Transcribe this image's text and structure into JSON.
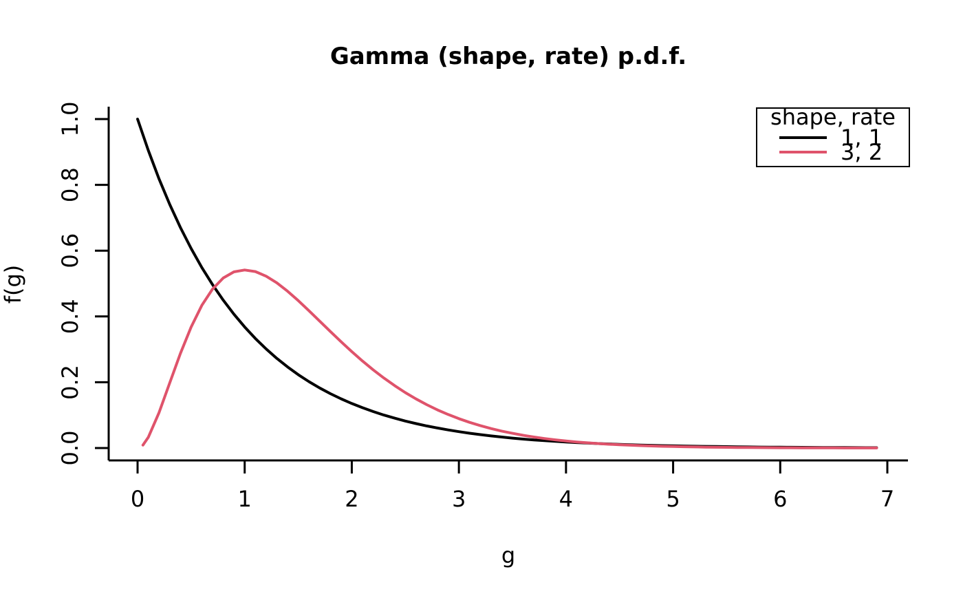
{
  "chart_data": {
    "type": "line",
    "title": "Gamma (shape, rate) p.d.f.",
    "xlabel": "g",
    "ylabel": "f(g)",
    "x_ticks": [
      0,
      1,
      2,
      3,
      4,
      5,
      6,
      7
    ],
    "x_tick_labels": [
      "0",
      "1",
      "2",
      "3",
      "4",
      "5",
      "6",
      "7"
    ],
    "y_ticks": [
      0.0,
      0.2,
      0.4,
      0.6,
      0.8,
      1.0
    ],
    "y_tick_labels": [
      "0.0",
      "0.2",
      "0.4",
      "0.6",
      "0.8",
      "1.0"
    ],
    "xlim": [
      -0.27,
      7.19
    ],
    "ylim": [
      -0.04,
      1.04
    ],
    "grid": false,
    "background": "#ffffff",
    "axis_color": "#000000",
    "legend": {
      "position": "topright",
      "title": "shape, rate",
      "entries": [
        {
          "label": "1, 1",
          "color": "#000000"
        },
        {
          "label": "3, 2",
          "color": "#DF536B"
        }
      ]
    },
    "series": [
      {
        "name": "shape=1, rate=1",
        "color": "#000000",
        "x": [
          0,
          0.1,
          0.2,
          0.3,
          0.4,
          0.5,
          0.6,
          0.7,
          0.8,
          0.9,
          1,
          1.1,
          1.2,
          1.3,
          1.4,
          1.5,
          1.6,
          1.7,
          1.8,
          1.9,
          2,
          2.1,
          2.2,
          2.3,
          2.4,
          2.5,
          2.6,
          2.7,
          2.8,
          2.9,
          3,
          3.1,
          3.2,
          3.3,
          3.4,
          3.5,
          3.6,
          3.7,
          3.8,
          3.9,
          4,
          4.1,
          4.2,
          4.3,
          4.4,
          4.5,
          4.6,
          4.7,
          4.8,
          4.9,
          5,
          5.1,
          5.2,
          5.3,
          5.4,
          5.5,
          5.6,
          5.7,
          5.8,
          5.9,
          6,
          6.1,
          6.2,
          6.3,
          6.4,
          6.5,
          6.6,
          6.7,
          6.8,
          6.9
        ],
        "y": [
          1.0,
          0.9048,
          0.8187,
          0.7408,
          0.6703,
          0.6065,
          0.5488,
          0.4966,
          0.4493,
          0.4066,
          0.3679,
          0.3329,
          0.3012,
          0.2725,
          0.2466,
          0.2231,
          0.2019,
          0.1827,
          0.1653,
          0.1496,
          0.1353,
          0.1225,
          0.1108,
          0.1003,
          0.0907,
          0.0821,
          0.0743,
          0.0672,
          0.0608,
          0.055,
          0.0498,
          0.045,
          0.0408,
          0.0369,
          0.0334,
          0.0302,
          0.0273,
          0.0247,
          0.0224,
          0.0202,
          0.0183,
          0.0166,
          0.015,
          0.0136,
          0.0123,
          0.0111,
          0.0101,
          0.0091,
          0.0082,
          0.0074,
          0.0067,
          0.0061,
          0.0055,
          0.005,
          0.0045,
          0.0041,
          0.0037,
          0.0033,
          0.003,
          0.0027,
          0.0025,
          0.0022,
          0.002,
          0.0018,
          0.0017,
          0.0015,
          0.0014,
          0.0012,
          0.0011,
          0.001
        ]
      },
      {
        "name": "shape=3, rate=2",
        "color": "#DF536B",
        "x": [
          0.05,
          0.1,
          0.2,
          0.3,
          0.4,
          0.5,
          0.6,
          0.7,
          0.8,
          0.9,
          1,
          1.1,
          1.2,
          1.3,
          1.4,
          1.5,
          1.6,
          1.7,
          1.8,
          1.9,
          2,
          2.1,
          2.2,
          2.3,
          2.4,
          2.5,
          2.6,
          2.7,
          2.8,
          2.9,
          3,
          3.1,
          3.2,
          3.3,
          3.4,
          3.5,
          3.6,
          3.7,
          3.8,
          3.9,
          4,
          4.1,
          4.2,
          4.3,
          4.4,
          4.5,
          4.6,
          4.7,
          4.8,
          4.9,
          5,
          5.1,
          5.2,
          5.3,
          5.4,
          5.5,
          5.6,
          5.7,
          5.8,
          5.9,
          6,
          6.1,
          6.2,
          6.3,
          6.4,
          6.5,
          6.6,
          6.7,
          6.8,
          6.9
        ],
        "y": [
          0.009,
          0.0327,
          0.1072,
          0.1976,
          0.2876,
          0.3679,
          0.4337,
          0.4833,
          0.5169,
          0.5356,
          0.5413,
          0.5363,
          0.5224,
          0.5022,
          0.4767,
          0.4481,
          0.4176,
          0.3858,
          0.3542,
          0.323,
          0.2931,
          0.2645,
          0.2377,
          0.2127,
          0.1897,
          0.1684,
          0.1492,
          0.1317,
          0.116,
          0.1018,
          0.0893,
          0.078,
          0.0681,
          0.0593,
          0.0515,
          0.0447,
          0.0387,
          0.0335,
          0.0289,
          0.0249,
          0.0215,
          0.0185,
          0.0158,
          0.0136,
          0.0116,
          0.01,
          0.0085,
          0.0073,
          0.0062,
          0.0053,
          0.0045,
          0.0039,
          0.0033,
          0.0028,
          0.0024,
          0.002,
          0.0017,
          0.0015,
          0.0012,
          0.0011,
          0.0009,
          0.0008,
          0.0006,
          0.0005,
          0.0005,
          0.0004,
          0.0003,
          0.0003,
          0.0002,
          0.0002
        ]
      }
    ]
  }
}
